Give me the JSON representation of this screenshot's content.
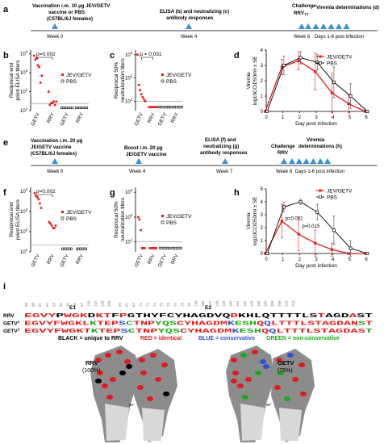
{
  "panel_a": {
    "letter": "a",
    "vaccination": "Vaccination  i.m. 10 µg JEV/GETV",
    "vaccine_or_pbs": "vaccine or PBS",
    "mice": "(C57BL/6J females)",
    "elisa": "ELISA (b) and neutralizing (c)",
    "antibody": "antibody responses",
    "challenge": "Challenge",
    "rrv_tt": "RRV",
    "rrv_tt_sub": "TT",
    "viremia": "Viremia determinations (d)",
    "week0": "Week 0",
    "week4": "Week 4",
    "week6": "Week 6",
    "days": "Days 1-6 post infection"
  },
  "panel_e": {
    "letter": "e",
    "vaccination": "Vaccination i.m. 20 µg",
    "vaccine": "JE/GETV vaccine",
    "mice": "(C57BL/6J females)",
    "boost": "Boost i.m. 20 µg",
    "boost_vaccine": "JE/GETV vaccine",
    "elisa": "ELISA (f) and",
    "neutralizing": "neutralizing (g)",
    "antibody": "antibody responses",
    "challenge": "Challenge",
    "rrv": "RRV",
    "viremia": "Viremia",
    "determinations": "determinations (h)",
    "week0": "Week 0",
    "week4": "Week 4",
    "week7": "Week 7",
    "week8": "Week 8",
    "days": "Days 1-6 post infection"
  },
  "legend": {
    "jev": "JEV/GETV",
    "pbs": "PBS"
  },
  "chart_data": [
    {
      "id": "b",
      "type": "scatter",
      "letter": "b",
      "ylabel": "Reciprocal end\npoint ELISA titers",
      "ytick_labels": [
        "10",
        "10",
        "10",
        "10"
      ],
      "ytick_exp": [
        "1",
        "2",
        "3",
        "4"
      ],
      "categories": [
        "GETV",
        "RRV",
        "GETV",
        "RRV"
      ],
      "pvalue": "p=0.002",
      "series": [
        {
          "name": "JEV/GETV",
          "values": [
            [
              8000,
              5000,
              6000,
              2500,
              2000,
              300,
              700
            ],
            [
              100,
              20,
              25,
              25,
              30,
              20,
              30
            ]
          ]
        },
        {
          "name": "PBS",
          "values": [
            [],
            [],
            [
              10,
              10,
              10,
              10,
              10,
              10,
              10
            ],
            [
              10,
              10,
              10,
              10,
              10,
              10,
              10
            ]
          ]
        }
      ]
    },
    {
      "id": "c",
      "type": "scatter",
      "letter": "c",
      "ylabel": "Reciprocal 50%\nneutralization titers",
      "ytick_labels": [
        "10",
        "10",
        "10"
      ],
      "ytick_exp": [
        "1",
        "2",
        "3"
      ],
      "categories": [
        "GETV",
        "RRV",
        "GETV",
        "RRV"
      ],
      "pvalue": "p = 0.031",
      "series": [
        {
          "name": "JEV/GETV",
          "values": [
            [
              1000,
              50,
              30,
              20,
              15,
              12,
              10
            ],
            [
              5,
              5,
              5,
              5,
              5,
              5,
              5
            ]
          ]
        },
        {
          "name": "PBS",
          "values": [
            [],
            [],
            [
              5,
              5,
              5,
              5,
              5,
              5,
              5
            ],
            [
              5,
              5,
              5,
              5,
              5,
              5,
              5
            ]
          ]
        }
      ]
    },
    {
      "id": "d",
      "type": "line",
      "letter": "d",
      "ylabel": "Viremia\nlog10CCID50/ml ± SE",
      "xlabel": "Day post infection",
      "x": [
        0,
        1,
        2,
        3,
        4,
        5,
        6
      ],
      "ylim": [
        0,
        4
      ],
      "series": [
        {
          "name": "JEV/GETV",
          "x": [
            0,
            1,
            2,
            3,
            4,
            5,
            6
          ],
          "y": [
            0,
            2.9,
            3.3,
            2.6,
            1.2,
            0.5,
            0
          ],
          "err": [
            0,
            0.5,
            0.6,
            1.2,
            1.3,
            0.6,
            0
          ]
        },
        {
          "name": "PBS",
          "x": [
            0,
            1,
            2,
            3,
            4,
            5,
            6
          ],
          "y": [
            0,
            3.0,
            3.5,
            3.2,
            1.9,
            1.0,
            0
          ],
          "err": [
            0,
            0.6,
            0.4,
            0.5,
            1.0,
            0.8,
            0
          ]
        }
      ]
    },
    {
      "id": "f",
      "type": "scatter",
      "letter": "f",
      "ylabel": "Reciprocal end\npoint ELISA titers",
      "ytick_labels": [
        "10",
        "10",
        "10",
        "10"
      ],
      "ytick_exp": [
        "1",
        "2",
        "3",
        "4"
      ],
      "categories": [
        "GETV",
        "RRV",
        "GETV",
        "RRV"
      ],
      "pvalue": "p=0.002",
      "series": [
        {
          "name": "JEV/GETV",
          "values": [
            [
              8000,
              6000,
              5000,
              4000,
              2500,
              1500
            ],
            [
              300,
              250,
              200,
              150,
              150,
              200
            ]
          ]
        },
        {
          "name": "PBS",
          "values": [
            [],
            [],
            [
              10,
              10,
              10,
              10,
              10,
              10
            ],
            [
              10,
              10,
              10,
              10,
              10,
              10
            ]
          ]
        }
      ]
    },
    {
      "id": "g",
      "type": "scatter",
      "letter": "g",
      "ylabel": "Reciprocal 50%\nneutralization titers",
      "ytick_labels": [
        "10",
        "10",
        "10"
      ],
      "ytick_exp": [
        "1",
        "2",
        "3"
      ],
      "categories": [
        "GETV",
        "RRV",
        "GETV",
        "RRV"
      ],
      "series": [
        {
          "name": "JEV/GETV",
          "values": [
            [
              100,
              80,
              30,
              5,
              5,
              5
            ],
            [
              5,
              5,
              5,
              5,
              5,
              5
            ]
          ]
        },
        {
          "name": "PBS",
          "values": [
            [],
            [],
            [
              5,
              5,
              5,
              5,
              5,
              5
            ],
            [
              5,
              5,
              5,
              5,
              5,
              5
            ]
          ]
        }
      ]
    },
    {
      "id": "h",
      "type": "line",
      "letter": "h",
      "ylabel": "Viremia\nlog10CCID50/ml ± SE",
      "xlabel": "Day post infection",
      "x": [
        0,
        1,
        2,
        3,
        4,
        5,
        6
      ],
      "ylim": [
        0,
        5
      ],
      "pvalues": [
        "p=0.022",
        "p=0.015"
      ],
      "series": [
        {
          "name": "JEV/GETV",
          "x": [
            0,
            1,
            2,
            3,
            4,
            5,
            6
          ],
          "y": [
            0,
            2.5,
            1.5,
            0.8,
            0.3,
            0,
            0
          ],
          "err": [
            0,
            1.3,
            1.3,
            1.0,
            0.5,
            0,
            0
          ]
        },
        {
          "name": "PBS",
          "x": [
            0,
            1,
            2,
            3,
            4,
            5,
            6
          ],
          "y": [
            0,
            3.6,
            4.0,
            3.2,
            1.8,
            0.4,
            0
          ],
          "err": [
            0,
            0.4,
            0.2,
            0.6,
            1.1,
            0.6,
            0
          ]
        }
      ]
    }
  ],
  "panel_i": {
    "letter": "i",
    "e1_label": "E1",
    "e2_label": "E2",
    "row_labels": [
      "RRV",
      "GETV",
      "GETV"
    ],
    "row_superscripts": [
      "",
      "1",
      "2"
    ],
    "numbers_e1": [
      "89",
      "90",
      "91",
      "92",
      "93",
      "94",
      "95",
      "96",
      "97",
      "130",
      "227",
      "228",
      "229"
    ],
    "numbers_e2": [
      "60",
      "61",
      "62",
      "71",
      "72",
      "74",
      "75",
      "76",
      "77",
      "78",
      "79",
      "138",
      "156",
      "157",
      "158",
      "159",
      "160",
      "161",
      "162",
      "163",
      "164",
      "165",
      "206",
      "208",
      "213",
      "214"
    ],
    "seq_rrv": "EGVYPWGKDKTFPGTHYFCYHAGDVQDKHLQTTTTLSTAGDAST",
    "seq_getv1": "EGVYFWGKLKTEPSCTNPYQSCYHAGDMKESHQQLTTTLSTAGDANST",
    "seq_getv2": "EGVYFWGKTKTEPSCTNPYQSCYHAGDMKESHQQLTTTLSTAGDAST",
    "color_key_black": "BLACK = unique to RRV",
    "color_key_red": "RED = identical",
    "color_key_blue": "BLUE = conservative",
    "color_key_green": "GREEN = non-conservative",
    "rrv_struct": "RRV",
    "rrv_pct": "(100%)",
    "getv_struct": "GETV",
    "getv_pct": "(75%)",
    "rot": "90°",
    "colors": {
      "red": "#e31a1c",
      "blue": "#3050d0",
      "green": "#18a818",
      "black": "#000000"
    }
  }
}
